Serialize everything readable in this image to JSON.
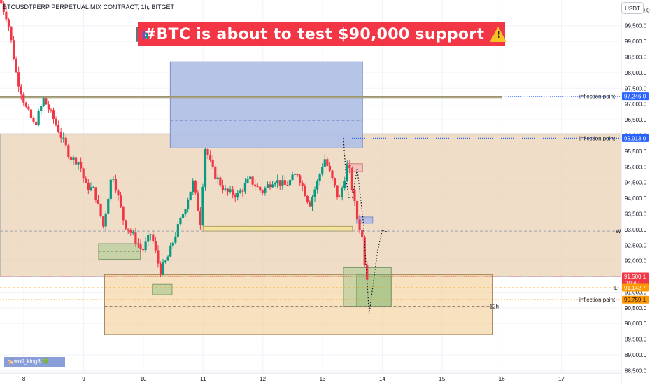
{
  "header": {
    "symbol_title": "BTCUSDTPERP PERPETUAL MIX CONTRACT, 1h, BITGET"
  },
  "banner": {
    "text": "#BTC is about to test $90,000 support",
    "color": "#f23645",
    "left_icon": "bar-chart-icon",
    "right_icon": "warning-icon"
  },
  "currency_button": {
    "label": "USDT"
  },
  "watermark": {
    "text": "✍🏻wolf_king8 💚"
  },
  "colors": {
    "up": "#089981",
    "down": "#f23645",
    "accent": "#2962ff",
    "orange": "#ff9800",
    "range_fill": "#e9d2b6",
    "supply_fill": "#b2c1e6"
  },
  "chart_data": {
    "type": "candlestick",
    "title": "BTCUSDTPERP PERPETUAL MIX CONTRACT, 1h, BITGET",
    "x_labels": [
      "8",
      "9",
      "10",
      "11",
      "12",
      "13",
      "14",
      "15",
      "16",
      "17"
    ],
    "x_day_index": [
      8,
      9,
      10,
      11,
      12,
      13,
      14,
      15,
      16,
      17
    ],
    "y_ticks": [
      "100,000.0",
      "99,500.0",
      "99,000.0",
      "98,500.0",
      "98,000.0",
      "97,500.0",
      "97,000.0",
      "96,500.0",
      "96,000.0",
      "95,500.0",
      "95,000.0",
      "94,500.0",
      "94,000.0",
      "93,500.0",
      "93,000.0",
      "92,500.0",
      "92,000.0",
      "91,500.0",
      "91,000.0",
      "90,500.0",
      "90,000.0",
      "89,500.0",
      "89,000.0",
      "88,500.0"
    ],
    "y_tick_values": [
      100000,
      99500,
      99000,
      98500,
      98000,
      97500,
      97000,
      96500,
      96000,
      95500,
      95000,
      94500,
      94000,
      93500,
      93000,
      92500,
      92000,
      91500,
      91000,
      90500,
      90000,
      89500,
      89000,
      88500
    ],
    "ylim": [
      88420,
      100320
    ],
    "xlim": [
      7.6,
      18.0
    ],
    "price_path": [
      [
        7.6,
        100400
      ],
      [
        7.75,
        99700
      ],
      [
        7.9,
        97900
      ],
      [
        8.05,
        96900
      ],
      [
        8.2,
        96300
      ],
      [
        8.35,
        97150
      ],
      [
        8.5,
        96600
      ],
      [
        8.65,
        95950
      ],
      [
        8.8,
        95300
      ],
      [
        8.95,
        95150
      ],
      [
        9.05,
        94400
      ],
      [
        9.2,
        94250
      ],
      [
        9.35,
        93100
      ],
      [
        9.5,
        94850
      ],
      [
        9.7,
        93200
      ],
      [
        9.85,
        92800
      ],
      [
        10.0,
        92300
      ],
      [
        10.15,
        92900
      ],
      [
        10.3,
        91650
      ],
      [
        10.42,
        92050
      ],
      [
        10.55,
        92800
      ],
      [
        10.7,
        93600
      ],
      [
        10.85,
        94500
      ],
      [
        10.98,
        93200
      ],
      [
        11.05,
        95650
      ],
      [
        11.2,
        94800
      ],
      [
        11.4,
        94200
      ],
      [
        11.6,
        94100
      ],
      [
        11.8,
        94600
      ],
      [
        12.0,
        94200
      ],
      [
        12.2,
        94600
      ],
      [
        12.4,
        94400
      ],
      [
        12.6,
        94800
      ],
      [
        12.8,
        93800
      ],
      [
        12.95,
        94600
      ],
      [
        13.05,
        95300
      ],
      [
        13.2,
        94500
      ],
      [
        13.3,
        93900
      ],
      [
        13.45,
        95150
      ],
      [
        13.55,
        93900
      ],
      [
        13.6,
        93350
      ],
      [
        13.68,
        92800
      ],
      [
        13.75,
        91500
      ]
    ],
    "range_zone": {
      "top": 96050,
      "bottom": 91500,
      "x_start": 7.6,
      "x_end": 18.0
    },
    "supply_box": {
      "top": 98350,
      "bottom": 95600,
      "x_start": 10.45,
      "x_end": 13.67
    },
    "inflection_band": {
      "top": 97250,
      "bottom": 97200,
      "x_start": 7.6,
      "x_end": 16.0
    },
    "support_box": {
      "top": 91560,
      "bottom": 89650,
      "x_start": 9.35,
      "x_end": 15.85
    },
    "green_box_left": {
      "top": 92550,
      "bottom": 92050,
      "x_start": 9.25,
      "x_end": 9.95
    },
    "green_box_mid": {
      "top": 91250,
      "bottom": 90920,
      "x_start": 10.15,
      "x_end": 10.48
    },
    "demand_box_outer": {
      "top": 91780,
      "bottom": 90550,
      "x_start": 13.35,
      "x_end": 14.15
    },
    "demand_box_inner": {
      "top": 91560,
      "bottom": 90550,
      "x_start": 13.57,
      "x_end": 14.15
    },
    "yellow_band": {
      "top": 93100,
      "bottom": 92950,
      "x_start": 11.0,
      "x_end": 13.5
    },
    "small_red_box": {
      "top": 95100,
      "bottom": 94850,
      "x_start": 13.4,
      "x_end": 13.67
    },
    "small_blue_box": {
      "top": 93400,
      "bottom": 93200,
      "x_start": 13.57,
      "x_end": 13.84
    },
    "w_line": 92950,
    "l_line": 91140,
    "twelve_h_line": 90550,
    "current_line": 91500,
    "projection_path": [
      [
        13.5,
        94000
      ],
      [
        13.58,
        94950
      ],
      [
        13.68,
        93300
      ],
      [
        13.78,
        90300
      ],
      [
        13.92,
        92300
      ],
      [
        14.0,
        93000
      ],
      [
        14.1,
        92900
      ]
    ],
    "projection_top_path": [
      [
        13.35,
        95900
      ],
      [
        13.4,
        94500
      ],
      [
        13.45,
        93950
      ]
    ],
    "inflection_dotted_1": {
      "value": 97246,
      "x_start": 16.0,
      "label": "inflection point",
      "tag": "97,246.0"
    },
    "inflection_dotted_2": {
      "value": 95913,
      "x_start": 13.35,
      "label": "inflection point",
      "tag": "95,913.0"
    },
    "inflection_dotted_3": {
      "value": 90759,
      "x_start": 7.6,
      "label": "inflection point",
      "tag": "90,759.1"
    },
    "price_tags": {
      "current": {
        "value": 91500.1,
        "label": "91,500.1",
        "sub": "10:49"
      },
      "l_level": {
        "value": 91142.7,
        "label": "91,142.7",
        "marker": "L"
      },
      "w_marker": {
        "marker": "W"
      },
      "twelve_h": {
        "label": "12h"
      }
    }
  }
}
